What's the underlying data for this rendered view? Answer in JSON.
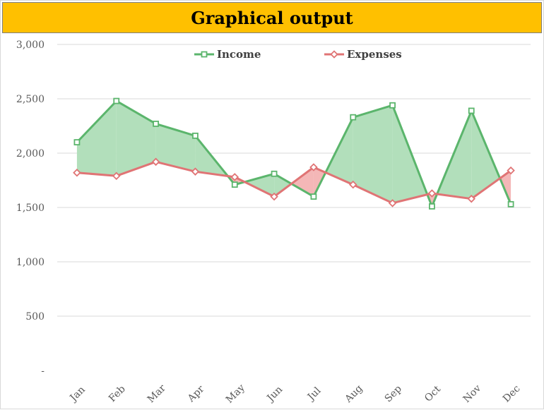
{
  "chart_data": {
    "type": "line",
    "title": "Graphical output",
    "categories": [
      "Jan",
      "Feb",
      "Mar",
      "Apr",
      "May",
      "Jun",
      "Jul",
      "Aug",
      "Sep",
      "Oct",
      "Nov",
      "Dec"
    ],
    "series": [
      {
        "name": "Income",
        "color": "#5bb56c",
        "fill": "#b2dfbb",
        "marker": "square",
        "values": [
          2100,
          2480,
          2270,
          2160,
          1710,
          1810,
          1600,
          2330,
          2440,
          1510,
          2390,
          1530
        ]
      },
      {
        "name": "Expenses",
        "color": "#e07475",
        "fill": "#f4b7b7",
        "marker": "diamond",
        "values": [
          1820,
          1790,
          1920,
          1830,
          1780,
          1600,
          1870,
          1710,
          1540,
          1630,
          1580,
          1840
        ]
      }
    ],
    "y_ticks": [
      {
        "value": 0,
        "label": "-"
      },
      {
        "value": 500,
        "label": "500"
      },
      {
        "value": 1000,
        "label": "1,000"
      },
      {
        "value": 1500,
        "label": "1,500"
      },
      {
        "value": 2000,
        "label": "2,000"
      },
      {
        "value": 2500,
        "label": "2,500"
      },
      {
        "value": 3000,
        "label": "3,000"
      }
    ],
    "ylim": [
      0,
      3000
    ],
    "grid": true,
    "legend_position": "top",
    "gridline_color": "#d9d9d9"
  }
}
